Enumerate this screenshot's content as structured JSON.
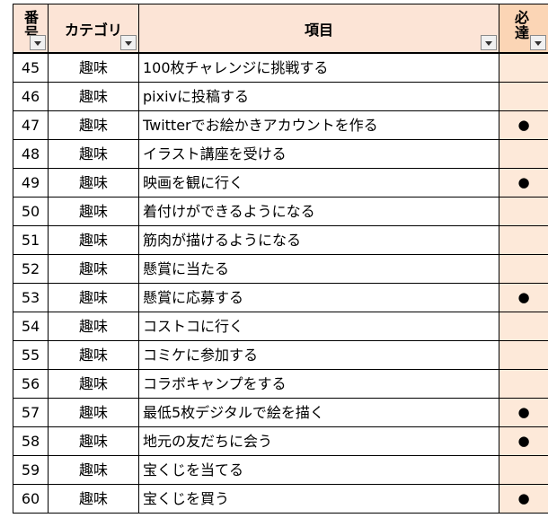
{
  "header": {
    "number": "番号",
    "category": "カテゴリ",
    "item": "項目",
    "must": "必達"
  },
  "colors": {
    "header_bg": "#fce4d6",
    "must_column_bg": "#fde9d9"
  },
  "rows": [
    {
      "number": "45",
      "category": "趣味",
      "item": "100枚チャレンジに挑戦する",
      "must": ""
    },
    {
      "number": "46",
      "category": "趣味",
      "item": "pixivに投稿する",
      "must": ""
    },
    {
      "number": "47",
      "category": "趣味",
      "item": "Twitterでお絵かきアカウントを作る",
      "must": "●"
    },
    {
      "number": "48",
      "category": "趣味",
      "item": "イラスト講座を受ける",
      "must": ""
    },
    {
      "number": "49",
      "category": "趣味",
      "item": "映画を観に行く",
      "must": "●"
    },
    {
      "number": "50",
      "category": "趣味",
      "item": "着付けができるようになる",
      "must": ""
    },
    {
      "number": "51",
      "category": "趣味",
      "item": "筋肉が描けるようになる",
      "must": ""
    },
    {
      "number": "52",
      "category": "趣味",
      "item": "懸賞に当たる",
      "must": ""
    },
    {
      "number": "53",
      "category": "趣味",
      "item": "懸賞に応募する",
      "must": "●"
    },
    {
      "number": "54",
      "category": "趣味",
      "item": "コストコに行く",
      "must": ""
    },
    {
      "number": "55",
      "category": "趣味",
      "item": "コミケに参加する",
      "must": ""
    },
    {
      "number": "56",
      "category": "趣味",
      "item": "コラボキャンプをする",
      "must": ""
    },
    {
      "number": "57",
      "category": "趣味",
      "item": "最低5枚デジタルで絵を描く",
      "must": "●"
    },
    {
      "number": "58",
      "category": "趣味",
      "item": "地元の友だちに会う",
      "must": "●"
    },
    {
      "number": "59",
      "category": "趣味",
      "item": "宝くじを当てる",
      "must": ""
    },
    {
      "number": "60",
      "category": "趣味",
      "item": "宝くじを買う",
      "must": "●"
    }
  ]
}
